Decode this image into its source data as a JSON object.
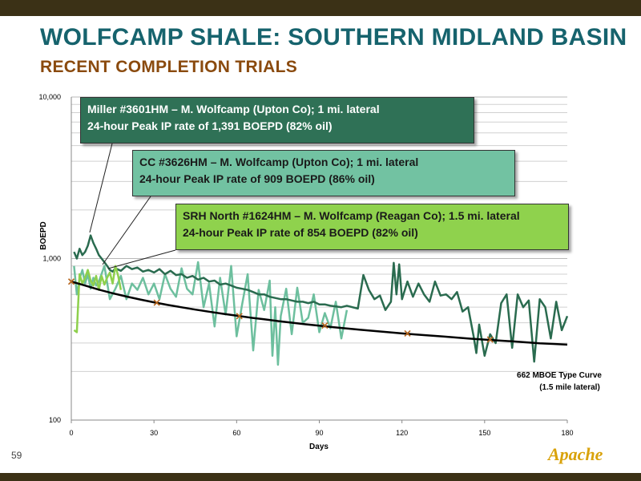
{
  "title": "WOLFCAMP SHALE: SOUTHERN MIDLAND BASIN",
  "subtitle": "RECENT COMPLETION TRIALS",
  "page_number": "59",
  "logo_text": "Apache",
  "colors": {
    "miller": "#2a6b4f",
    "cc": "#6dbf9e",
    "srh": "#8ed04c",
    "type_curve": "#000000",
    "title": "#16636d",
    "subtitle": "#8a4a0e"
  },
  "callouts": [
    {
      "line1": "Miller #3601HM – M. Wolfcamp (Upton Co); 1 mi. lateral",
      "line2": "24-hour Peak IP rate of  1,391 BOEPD (82% oil)"
    },
    {
      "line1": "CC #3626HM – M. Wolfcamp (Upton Co); 1 mi. lateral",
      "line2": "24-hour Peak IP rate of  909 BOEPD (86% oil)"
    },
    {
      "line1": "SRH North #1624HM – M. Wolfcamp (Reagan Co); 1.5 mi. lateral",
      "line2": "24-hour Peak IP rate of  854 BOEPD (82% oil)"
    }
  ],
  "chart_data": {
    "type": "line",
    "xlabel": "Days",
    "ylabel": "BOEPD",
    "xlim": [
      0,
      180
    ],
    "ylim": [
      100,
      10000
    ],
    "y_scale": "log",
    "x_ticks": [
      0,
      30,
      60,
      90,
      120,
      150,
      180
    ],
    "y_ticks": [
      100,
      1000,
      10000
    ],
    "y_tick_labels": [
      "100",
      "1,000",
      "10,000"
    ],
    "grid": "horizontal",
    "type_curve_label": [
      "662 MBOE Type Curve",
      "(1.5 mile lateral)"
    ],
    "series": [
      {
        "key": "miller",
        "x": [
          1,
          2,
          3,
          4,
          5,
          6,
          7,
          8,
          9,
          10,
          11,
          12,
          13,
          14,
          15,
          16,
          18,
          20,
          22,
          24,
          26,
          28,
          30,
          32,
          34,
          36,
          38,
          40,
          42,
          44,
          46,
          48,
          50,
          52,
          54,
          56,
          58,
          60,
          62,
          64,
          66,
          68,
          70,
          72,
          74,
          76,
          78,
          80,
          82,
          84,
          86,
          88,
          90,
          92,
          94,
          96,
          98,
          100,
          102,
          104,
          106,
          108,
          110,
          112,
          114,
          116,
          117,
          118,
          119,
          120,
          122,
          124,
          126,
          128,
          130,
          132,
          134,
          136,
          138,
          140,
          142,
          144,
          146,
          147,
          148,
          150,
          152,
          154,
          156,
          158,
          160,
          162,
          164,
          166,
          168,
          170,
          172,
          174,
          176,
          178,
          180
        ],
        "y": [
          1100,
          1000,
          1150,
          1050,
          1100,
          1200,
          1390,
          1250,
          1150,
          1050,
          1000,
          950,
          900,
          850,
          830,
          870,
          840,
          900,
          860,
          880,
          830,
          850,
          820,
          860,
          800,
          840,
          790,
          800,
          760,
          780,
          740,
          760,
          720,
          730,
          690,
          700,
          680,
          660,
          650,
          640,
          620,
          600,
          600,
          580,
          570,
          560,
          560,
          550,
          540,
          540,
          530,
          540,
          520,
          520,
          510,
          505,
          500,
          510,
          500,
          490,
          790,
          640,
          560,
          590,
          480,
          540,
          940,
          600,
          920,
          560,
          720,
          580,
          700,
          600,
          540,
          720,
          590,
          600,
          560,
          620,
          470,
          500,
          330,
          260,
          390,
          250,
          340,
          300,
          530,
          600,
          280,
          600,
          500,
          550,
          230,
          560,
          500,
          320,
          540,
          360,
          440
        ]
      },
      {
        "key": "cc",
        "x": [
          1,
          2,
          3,
          4,
          5,
          6,
          7,
          8,
          9,
          10,
          12,
          14,
          16,
          18,
          20,
          22,
          24,
          26,
          28,
          30,
          32,
          34,
          36,
          38,
          40,
          42,
          44,
          46,
          48,
          50,
          52,
          54,
          56,
          58,
          60,
          62,
          64,
          66,
          68,
          70,
          72,
          73,
          74,
          75,
          76,
          78,
          80,
          82,
          84,
          86,
          88,
          90,
          92,
          94,
          96,
          98,
          100
        ],
        "y": [
          900,
          600,
          750,
          850,
          700,
          800,
          650,
          760,
          680,
          720,
          900,
          560,
          650,
          780,
          560,
          700,
          640,
          760,
          600,
          700,
          560,
          800,
          650,
          580,
          870,
          650,
          600,
          950,
          500,
          700,
          380,
          760,
          450,
          900,
          330,
          520,
          800,
          270,
          640,
          480,
          730,
          250,
          500,
          220,
          440,
          650,
          340,
          660,
          400,
          430,
          600,
          350,
          460,
          370,
          540,
          320,
          480
        ]
      },
      {
        "key": "srh",
        "x": [
          1,
          2,
          3,
          4,
          5,
          6,
          7,
          8,
          9,
          10,
          11,
          12,
          13,
          14,
          15,
          16,
          17,
          18
        ],
        "y": [
          360,
          350,
          800,
          700,
          760,
          850,
          730,
          680,
          780,
          640,
          780,
          690,
          760,
          820,
          700,
          900,
          780,
          640
        ]
      },
      {
        "key": "type_curve",
        "x": [
          0,
          5,
          10,
          15,
          20,
          25,
          30,
          35,
          40,
          45,
          50,
          55,
          60,
          65,
          70,
          75,
          80,
          85,
          90,
          95,
          100,
          105,
          110,
          115,
          120,
          125,
          130,
          135,
          140,
          145,
          150,
          155,
          160,
          165,
          170,
          175,
          180
        ],
        "y": [
          720,
          680,
          642,
          610,
          582,
          558,
          536,
          516,
          499,
          483,
          469,
          455,
          443,
          431,
          421,
          410,
          401,
          392,
          384,
          376,
          369,
          362,
          356,
          350,
          344,
          339,
          334,
          329,
          324,
          319,
          315,
          311,
          307,
          303,
          299,
          296,
          293
        ]
      },
      {
        "key": "type_curve_markers",
        "x": [
          0,
          31,
          61,
          92,
          122,
          152
        ],
        "y": [
          720,
          533,
          440,
          385,
          344,
          315
        ]
      }
    ]
  }
}
